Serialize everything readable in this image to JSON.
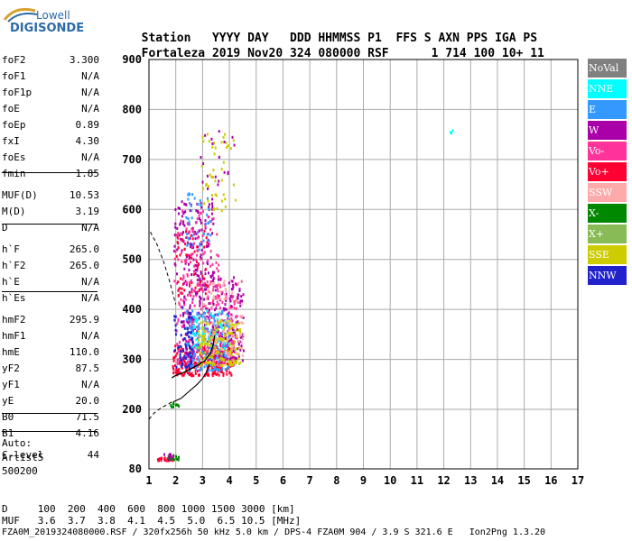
{
  "logo": {
    "line1": "Lowell",
    "line2": "DIGISONDE"
  },
  "header": {
    "labels": [
      "Station",
      "YYYY",
      "DAY",
      "DDD",
      "HHMMSS",
      "P1",
      "FFS",
      "S",
      "AXN",
      "PPS",
      "IGA",
      "PS"
    ],
    "values": [
      "Fortaleza",
      "2019",
      "Nov20",
      "324",
      "080000",
      "RSF",
      "",
      "1",
      "714",
      "100",
      "10+",
      "11"
    ]
  },
  "params_a": [
    {
      "label": "foF2",
      "value": "3.300"
    },
    {
      "label": "foF1",
      "value": "N/A"
    },
    {
      "label": "foF1p",
      "value": "N/A"
    },
    {
      "label": "foE",
      "value": "N/A"
    },
    {
      "label": "foEp",
      "value": "0.89"
    },
    {
      "label": "fxI",
      "value": "4.30"
    },
    {
      "label": "foEs",
      "value": "N/A"
    },
    {
      "label": "fmin",
      "value": "1.85"
    }
  ],
  "params_b": [
    {
      "label": "MUF(D)",
      "value": "10.53"
    },
    {
      "label": "M(D)",
      "value": "3.19"
    },
    {
      "label": "D",
      "value": "N/A"
    }
  ],
  "params_c": [
    {
      "label": "h`F",
      "value": "265.0"
    },
    {
      "label": "h`F2",
      "value": "265.0"
    },
    {
      "label": "h`E",
      "value": "N/A"
    },
    {
      "label": "h`Es",
      "value": "N/A"
    }
  ],
  "params_d": [
    {
      "label": "hmF2",
      "value": "295.9"
    },
    {
      "label": "hmF1",
      "value": "N/A"
    },
    {
      "label": "hmE",
      "value": "110.0"
    },
    {
      "label": "yF2",
      "value": "87.5"
    },
    {
      "label": "yF1",
      "value": "N/A"
    },
    {
      "label": "yE",
      "value": "20.0"
    },
    {
      "label": "B0",
      "value": "71.5"
    },
    {
      "label": "B1",
      "value": "4.16"
    }
  ],
  "params_e": [
    {
      "label": "C-level",
      "value": "44"
    }
  ],
  "auto": [
    "Auto:",
    "Artist5",
    "500200"
  ],
  "legend": [
    {
      "label": "NoVal",
      "color": "#808080"
    },
    {
      "label": "NNE",
      "color": "#00ffff"
    },
    {
      "label": "E",
      "color": "#3399ff"
    },
    {
      "label": "W",
      "color": "#aa00aa"
    },
    {
      "label": "Vo-",
      "color": "#ff3399"
    },
    {
      "label": "Vo+",
      "color": "#ff0033"
    },
    {
      "label": "SSW",
      "color": "#ffaaaa"
    },
    {
      "label": "X-",
      "color": "#008800"
    },
    {
      "label": "X+",
      "color": "#88bb55"
    },
    {
      "label": "SSE",
      "color": "#cccc00"
    },
    {
      "label": "NNW",
      "color": "#2222cc"
    }
  ],
  "bottom": {
    "d_label": "D",
    "d_values": [
      "100",
      "200",
      "400",
      "600",
      "800",
      "1000",
      "1500",
      "3000"
    ],
    "d_unit": "[km]",
    "muf_label": "MUF",
    "muf_values": [
      "3.6",
      "3.7",
      "3.8",
      "4.1",
      "4.5",
      "5.0",
      "6.5",
      "10.5"
    ],
    "muf_unit": "[MHz]"
  },
  "footer": "FZA0M_2019324080000.RSF / 320fx256h 50 kHz 5.0 km / DPS-4 FZA0M 904 / 3.9 S 321.6 E   Ion2Png 1.3.20",
  "chart_data": {
    "type": "scatter",
    "xlim": [
      1,
      17
    ],
    "ylim": [
      80,
      900
    ],
    "x_ticks": [
      1,
      2,
      3,
      4,
      5,
      6,
      7,
      8,
      9,
      10,
      11,
      12,
      13,
      14,
      15,
      16,
      17
    ],
    "x_tick_labels": [
      "1",
      "2",
      "3",
      "4",
      "5",
      "6",
      "7",
      "8",
      "9",
      "10",
      "11",
      "12",
      "13",
      "14",
      "15",
      "16",
      "17"
    ],
    "y_ticks": [
      80,
      200,
      300,
      400,
      500,
      600,
      700,
      800,
      900
    ],
    "y_tick_labels": [
      "80",
      "200",
      "300",
      "400",
      "500",
      "600",
      "700",
      "800",
      "900"
    ],
    "grid": true,
    "clusters": [
      {
        "color": "#ff0033",
        "xmin": 1.85,
        "xmax": 4.1,
        "ymin": 270,
        "ymax": 330,
        "count": 260
      },
      {
        "color": "#ff3399",
        "xmin": 2.0,
        "xmax": 4.3,
        "ymin": 290,
        "ymax": 460,
        "count": 260
      },
      {
        "color": "#aa00aa",
        "xmin": 2.2,
        "xmax": 4.5,
        "ymin": 300,
        "ymax": 470,
        "count": 240
      },
      {
        "color": "#3399ff",
        "xmin": 2.3,
        "xmax": 4.0,
        "ymin": 280,
        "ymax": 400,
        "count": 170
      },
      {
        "color": "#00ffff",
        "xmin": 2.6,
        "xmax": 3.8,
        "ymin": 320,
        "ymax": 400,
        "count": 60
      },
      {
        "color": "#cccc00",
        "xmin": 2.8,
        "xmax": 4.4,
        "ymin": 290,
        "ymax": 380,
        "count": 160
      },
      {
        "color": "#ffaaaa",
        "xmin": 3.0,
        "xmax": 4.5,
        "ymin": 310,
        "ymax": 460,
        "count": 70
      },
      {
        "color": "#2222cc",
        "xmin": 1.9,
        "xmax": 2.6,
        "ymin": 280,
        "ymax": 410,
        "count": 60
      },
      {
        "color": "#aa00aa",
        "xmin": 1.9,
        "xmax": 3.4,
        "ymin": 460,
        "ymax": 620,
        "count": 130
      },
      {
        "color": "#ff3399",
        "xmin": 1.9,
        "xmax": 3.6,
        "ymin": 450,
        "ymax": 600,
        "count": 90
      },
      {
        "color": "#ff0033",
        "xmin": 2.0,
        "xmax": 3.2,
        "ymin": 430,
        "ymax": 560,
        "count": 50
      },
      {
        "color": "#3399ff",
        "xmin": 2.3,
        "xmax": 3.3,
        "ymin": 520,
        "ymax": 640,
        "count": 40
      },
      {
        "color": "#cccc00",
        "xmin": 2.9,
        "xmax": 4.2,
        "ymin": 600,
        "ymax": 760,
        "count": 45
      },
      {
        "color": "#aa00aa",
        "xmin": 2.9,
        "xmax": 4.2,
        "ymin": 620,
        "ymax": 760,
        "count": 20
      },
      {
        "color": "#008800",
        "xmin": 1.75,
        "xmax": 2.15,
        "ymin": 207,
        "ymax": 215,
        "count": 10
      },
      {
        "color": "#ff0033",
        "xmin": 1.25,
        "xmax": 1.9,
        "ymin": 99,
        "ymax": 105,
        "count": 22
      },
      {
        "color": "#008800",
        "xmin": 1.6,
        "xmax": 2.1,
        "ymin": 100,
        "ymax": 110,
        "count": 14
      },
      {
        "color": "#aa00aa",
        "xmin": 1.5,
        "xmax": 1.9,
        "ymin": 100,
        "ymax": 112,
        "count": 8
      },
      {
        "color": "#00ffff",
        "xmin": 12.2,
        "xmax": 12.3,
        "ymin": 755,
        "ymax": 762,
        "count": 3
      }
    ],
    "trace_solid": [
      [
        1.85,
        263
      ],
      [
        2.0,
        268
      ],
      [
        2.3,
        274
      ],
      [
        2.6,
        282
      ],
      [
        2.9,
        291
      ],
      [
        3.1,
        298
      ],
      [
        3.3,
        313
      ],
      [
        3.4,
        330
      ],
      [
        3.45,
        348
      ]
    ],
    "trace_dashed_upper": [
      [
        1.05,
        555
      ],
      [
        1.3,
        530
      ],
      [
        1.55,
        495
      ],
      [
        1.75,
        460
      ],
      [
        1.9,
        430
      ],
      [
        2.0,
        410
      ]
    ],
    "trace_dashed_lower": [
      [
        1.0,
        180
      ],
      [
        1.2,
        193
      ],
      [
        1.45,
        203
      ],
      [
        1.7,
        210
      ],
      [
        1.85,
        215
      ]
    ],
    "trace_f2": [
      [
        1.9,
        215
      ],
      [
        2.2,
        222
      ],
      [
        2.5,
        236
      ],
      [
        2.8,
        250
      ],
      [
        3.0,
        262
      ],
      [
        3.15,
        275
      ],
      [
        3.25,
        290
      ]
    ]
  }
}
